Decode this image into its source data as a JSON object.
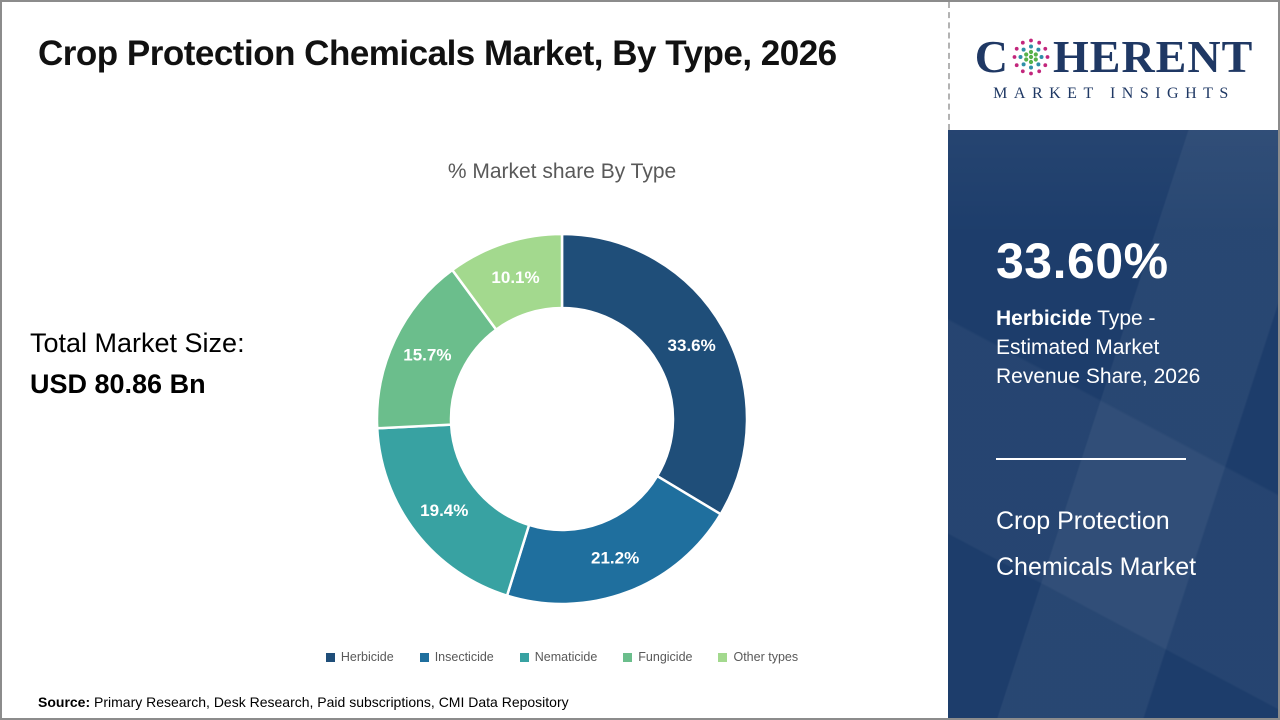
{
  "header": {
    "title": "Crop Protection Chemicals Market, By Type, 2026",
    "logo": {
      "word_start": "C",
      "word_end": "HERENT",
      "subtitle": "MARKET INSIGHTS"
    }
  },
  "chart_data": {
    "type": "pie",
    "donut": true,
    "title": "% Market share By Type",
    "categories": [
      "Herbicide",
      "Insecticide",
      "Nematicide",
      "Fungicide",
      "Other types"
    ],
    "values": [
      33.6,
      21.2,
      19.4,
      15.7,
      10.1
    ],
    "labels": [
      "33.6%",
      "21.2%",
      "19.4%",
      "15.7%",
      "10.1%"
    ],
    "colors": [
      "#1f4e79",
      "#1f6f9e",
      "#38a2a2",
      "#6bbe8c",
      "#a3d98e"
    ],
    "start_angle_deg": 0,
    "direction": "clockwise",
    "legend_position": "bottom",
    "label_color": "#ffffff"
  },
  "left_panel": {
    "total_label": "Total Market Size:",
    "total_value": "USD 80.86 Bn"
  },
  "right_panel": {
    "bg_color": "#1d3d6b",
    "headline_value": "33.60%",
    "subtitle_bold": "Herbicide",
    "subtitle_rest": " Type -",
    "subtitle_line2": "Estimated Market",
    "subtitle_line3": "Revenue Share, 2026",
    "market_name_line1": "Crop Protection",
    "market_name_line2": "Chemicals Market"
  },
  "footer": {
    "source_label": "Source:",
    "source_text": " Primary Research, Desk Research, Paid subscriptions, CMI Data Repository"
  }
}
